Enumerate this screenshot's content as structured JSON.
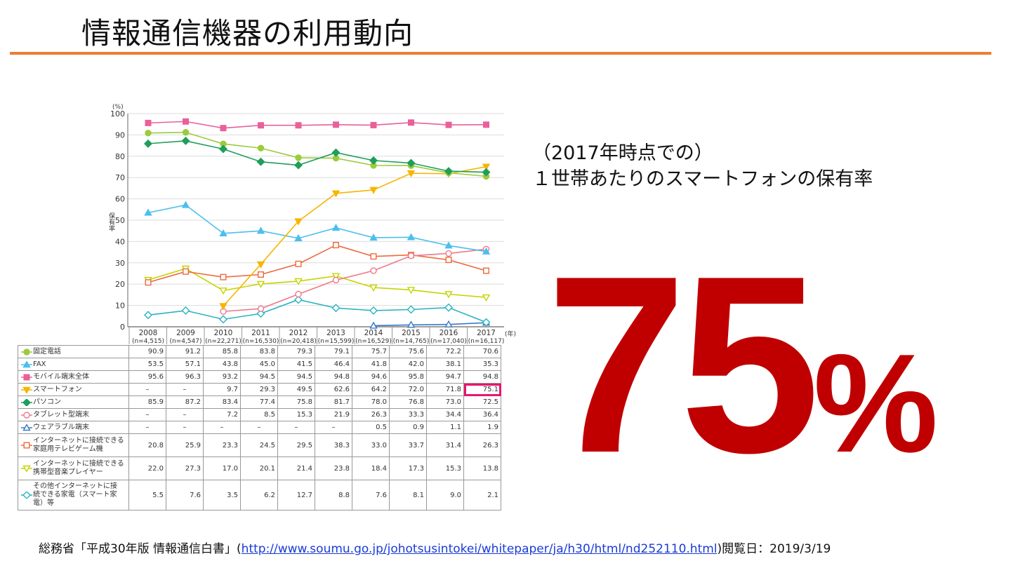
{
  "slide": {
    "title": "情報通信機器の利用動向",
    "subtitle_line1": "（2017年時点での）",
    "subtitle_line2": "１世帯あたりのスマートフォンの保有率",
    "big_value": "75",
    "big_unit": "%",
    "colors": {
      "accent_rule": "#ed7d31",
      "big_value": "#c00000",
      "highlight": "#e8156e"
    }
  },
  "footer": {
    "source_prefix": "総務省「平成30年版 情報通信白書」(",
    "link": "http://www.soumu.go.jp/johotsusintokei/whitepaper/ja/h30/html/nd252110.html",
    "source_suffix": ")閲覧日：2019/3/19"
  },
  "chart_data": {
    "type": "line",
    "ylabel": "保有率",
    "yunit": "(%)",
    "xunit": "(年)",
    "ylim": [
      0,
      100
    ],
    "yticks": [
      0,
      10,
      20,
      30,
      40,
      50,
      60,
      70,
      80,
      90,
      100
    ],
    "grid": true,
    "categories": [
      "2008",
      "2009",
      "2010",
      "2011",
      "2012",
      "2013",
      "2014",
      "2015",
      "2016",
      "2017"
    ],
    "sample_sizes": [
      "(n=4,515)",
      "(n=4,547)",
      "(n=22,271)",
      "(n=16,530)",
      "(n=20,418)",
      "(n=15,599)",
      "(n=16,529)",
      "(n=14,765)",
      "(n=17,040)",
      "(n=16,117)"
    ],
    "missing_label": "–",
    "highlight": {
      "series": "スマートフォン",
      "year": "2017"
    },
    "series": [
      {
        "name": "固定電話",
        "color": "#9ccb3b",
        "marker": "circle",
        "filled": true,
        "values": [
          90.9,
          91.2,
          85.8,
          83.8,
          79.3,
          79.1,
          75.7,
          75.6,
          72.2,
          70.6
        ]
      },
      {
        "name": "FAX",
        "color": "#4bbfee",
        "marker": "triangle",
        "filled": true,
        "values": [
          53.5,
          57.1,
          43.8,
          45.0,
          41.5,
          46.4,
          41.8,
          42.0,
          38.1,
          35.3
        ]
      },
      {
        "name": "モバイル端末全体",
        "color": "#e9609a",
        "marker": "square",
        "filled": true,
        "values": [
          95.6,
          96.3,
          93.2,
          94.5,
          94.5,
          94.8,
          94.6,
          95.8,
          94.7,
          94.8
        ]
      },
      {
        "name": "スマートフォン",
        "color": "#f7b500",
        "marker": "triangle-down",
        "filled": true,
        "values": [
          null,
          null,
          9.7,
          29.3,
          49.5,
          62.6,
          64.2,
          72.0,
          71.8,
          75.1
        ]
      },
      {
        "name": "パソコン",
        "color": "#1f9e5c",
        "marker": "diamond",
        "filled": true,
        "values": [
          85.9,
          87.2,
          83.4,
          77.4,
          75.8,
          81.7,
          78.0,
          76.8,
          73.0,
          72.5
        ]
      },
      {
        "name": "タブレット型端末",
        "color": "#f0788a",
        "marker": "circle",
        "filled": false,
        "values": [
          null,
          null,
          7.2,
          8.5,
          15.3,
          21.9,
          26.3,
          33.3,
          34.4,
          36.4
        ]
      },
      {
        "name": "ウェアラブル端末",
        "color": "#3a78c8",
        "marker": "triangle",
        "filled": false,
        "values": [
          null,
          null,
          null,
          null,
          null,
          null,
          0.5,
          0.9,
          1.1,
          1.9
        ]
      },
      {
        "name": "インターネットに接続できる家庭用テレビゲーム機",
        "label_lines": [
          "インターネットに接続できる",
          "家庭用テレビゲーム機"
        ],
        "color": "#ee6a3e",
        "marker": "square",
        "filled": false,
        "values": [
          20.8,
          25.9,
          23.3,
          24.5,
          29.5,
          38.3,
          33.0,
          33.7,
          31.4,
          26.3
        ]
      },
      {
        "name": "インターネットに接続できる携帯型音楽プレイヤー",
        "label_lines": [
          "インターネットに接続できる",
          "携帯型音楽プレイヤー"
        ],
        "color": "#c5d400",
        "marker": "triangle-down",
        "filled": false,
        "values": [
          22.0,
          27.3,
          17.0,
          20.1,
          21.4,
          23.8,
          18.4,
          17.3,
          15.3,
          13.8
        ]
      },
      {
        "name": "その他インターネットに接続できる家電（スマート家電）等",
        "label_lines": [
          "その他インターネットに接",
          "続できる家電（スマート家",
          "電）等"
        ],
        "color": "#2ab3c0",
        "marker": "diamond",
        "filled": false,
        "values": [
          5.5,
          7.6,
          3.5,
          6.2,
          12.7,
          8.8,
          7.6,
          8.1,
          9.0,
          2.1
        ]
      }
    ]
  }
}
